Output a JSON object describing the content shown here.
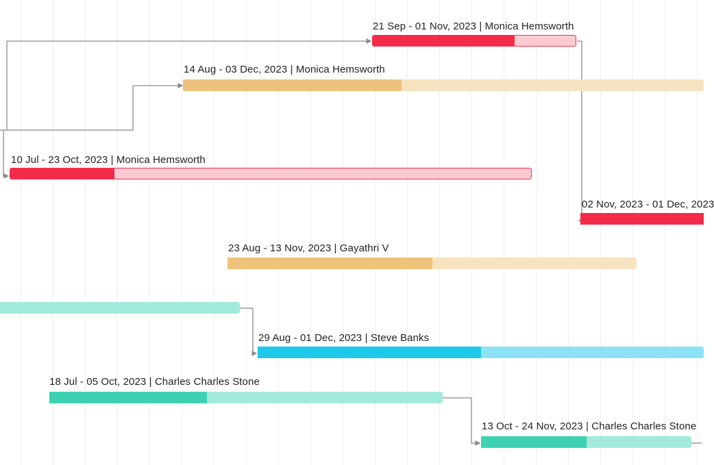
{
  "colors": {
    "red": {
      "fill": "#f42b48",
      "track": "#fccbd2",
      "border": "#f0324f"
    },
    "orange": {
      "fill": "#efc27c",
      "track": "#f8e3c0",
      "border": ""
    },
    "teal": {
      "fill": "#3dd1b2",
      "track": "#a2eadb",
      "border": ""
    },
    "cyan": {
      "fill": "#1ec8ea",
      "track": "#8de3f4",
      "border": ""
    },
    "connector": "#8a8a8a",
    "gridline": "#efeff1"
  },
  "tasks": [
    {
      "id": "t1",
      "label": "21 Sep - 01 Nov, 2023 | Monica Hemsworth",
      "owner": "Monica Hemsworth",
      "color": "red",
      "progress": 0.7
    },
    {
      "id": "t2",
      "label": "14 Aug - 03 Dec, 2023 | Monica Hemsworth",
      "owner": "Monica Hemsworth",
      "color": "orange",
      "progress": 0.42
    },
    {
      "id": "t3",
      "label": "10 Jul - 23 Oct, 2023 | Monica Hemsworth",
      "owner": "Monica Hemsworth",
      "color": "red",
      "progress": 0.2
    },
    {
      "id": "t4",
      "label": "02 Nov, 2023 - 01 Dec, 2023",
      "owner": "",
      "color": "red",
      "progress": 1.0
    },
    {
      "id": "t5",
      "label": "23 Aug - 13 Nov, 2023 | Gayathri V",
      "owner": "Gayathri V",
      "color": "orange",
      "progress": 0.5
    },
    {
      "id": "t6",
      "label": "",
      "owner": "",
      "color": "teal",
      "progress": 0.0
    },
    {
      "id": "t7",
      "label": "29 Aug - 01 Dec, 2023 | Steve Banks",
      "owner": "Steve Banks",
      "color": "cyan",
      "progress": 0.5
    },
    {
      "id": "t8",
      "label": "18 Jul - 05 Oct, 2023 | Charles Charles Stone",
      "owner": "Charles Charles Stone",
      "color": "teal",
      "progress": 0.4
    },
    {
      "id": "t9",
      "label": "13 Oct - 24 Nov, 2023 | Charles Charles Stone",
      "owner": "Charles Charles Stone",
      "color": "teal",
      "progress": 0.5
    }
  ]
}
